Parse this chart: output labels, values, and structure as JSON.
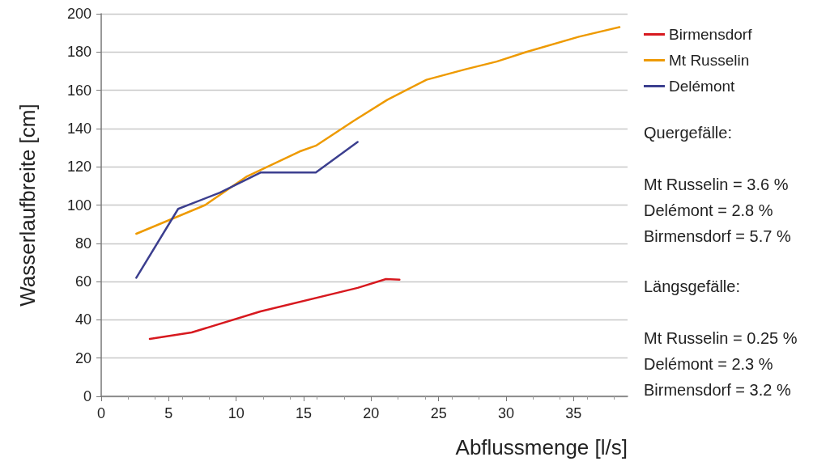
{
  "chart_data": {
    "type": "line",
    "xlabel": "Abflussmenge [l/s]",
    "ylabel": "Wasserlaufbreite [cm]",
    "xlim": [
      0,
      39
    ],
    "xticks": [
      0,
      5,
      10,
      15,
      20,
      25,
      30,
      35
    ],
    "ylim": [
      0,
      200
    ],
    "yticks": [
      0,
      20,
      40,
      60,
      80,
      100,
      120,
      140,
      160,
      180,
      200
    ],
    "grid": "y",
    "legend": "top right",
    "marker": "none",
    "line_style": "solid",
    "series": [
      {
        "name": "Birmensdorf",
        "color": "#d7191f",
        "x": [
          3.6,
          6.7,
          11.8,
          19,
          21.1,
          22.1
        ],
        "values": [
          30,
          33.4,
          44.4,
          56.7,
          61.3,
          61
        ]
      },
      {
        "name": "Mt Russelin",
        "color": "#ee9a00",
        "x": [
          2.6,
          7.7,
          10.8,
          14.7,
          15.9,
          18.7,
          21.2,
          24.1,
          27,
          29.3,
          31.5,
          35.4,
          38.4
        ],
        "values": [
          85,
          100,
          115,
          128,
          131,
          144,
          155,
          165.5,
          171,
          175,
          180,
          188,
          193
        ]
      },
      {
        "name": "Delémont",
        "color": "#3c3f8f",
        "x": [
          2.6,
          5.7,
          8.8,
          11.8,
          15.9,
          19
        ],
        "values": [
          62,
          98,
          106.5,
          117,
          117,
          133
        ]
      }
    ],
    "annotations": [
      "Quergefälle:\n\nMt Russelin = 3.6 %\nDelémont = 2.8 %\nBirmensdorf = 5.7 %",
      "Längsgefälle:\n\nMt Russelin = 0.25 %\nDelémont = 2.3 %\nBirmensdorf = 3.2 %"
    ]
  }
}
